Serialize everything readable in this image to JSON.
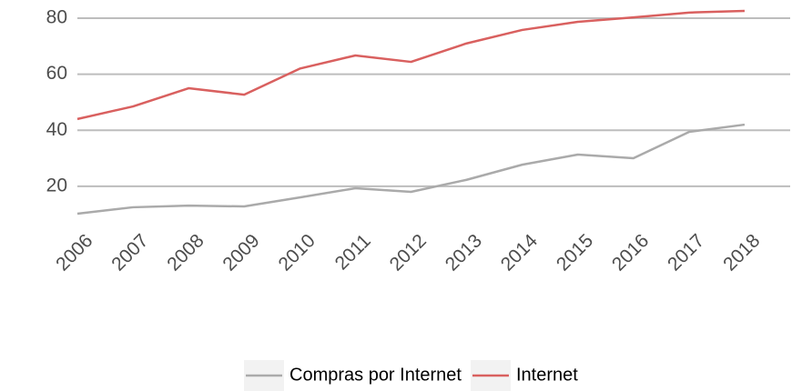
{
  "chart_data": {
    "type": "line",
    "categories": [
      "2006",
      "2007",
      "2008",
      "2009",
      "2010",
      "2011",
      "2012",
      "2013",
      "2014",
      "2015",
      "2016",
      "2017",
      "2018"
    ],
    "series": [
      {
        "name": "Compras por Internet",
        "color": "#aaaaaa",
        "values": [
          10.2,
          12.5,
          13.1,
          12.8,
          16,
          19.3,
          18,
          22.3,
          27.7,
          31.3,
          30,
          39.4,
          42
        ]
      },
      {
        "name": "Internet",
        "color": "#d9605f",
        "values": [
          44,
          48.5,
          55,
          52.7,
          62,
          66.7,
          64.4,
          71,
          75.8,
          78.7,
          80.3,
          82,
          82.6
        ]
      }
    ],
    "ylim": [
      8,
      83
    ],
    "yticks": [
      20,
      40,
      60,
      80
    ],
    "grid": true,
    "legend": "bottom"
  }
}
